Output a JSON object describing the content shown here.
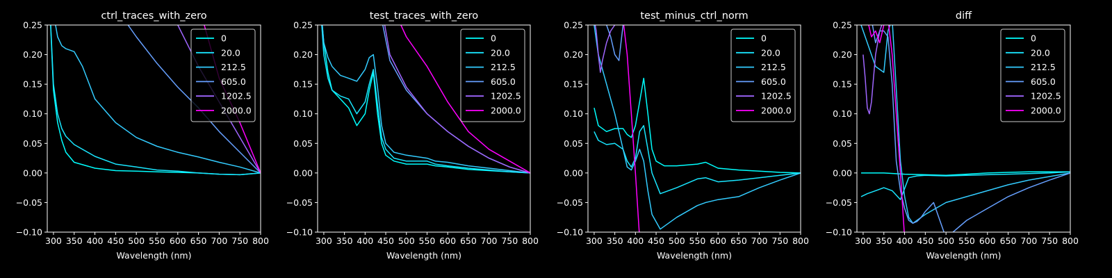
{
  "figure": {
    "background": "#000000",
    "axes_color": "#ffffff"
  },
  "chart_data": [
    {
      "type": "line",
      "title": "ctrl_traces_with_zero",
      "xlabel": "Wavelength (nm)",
      "ylabel": "",
      "xlim": [
        285,
        800
      ],
      "ylim": [
        -0.1,
        0.25
      ],
      "xticks": [
        "300",
        "350",
        "400",
        "450",
        "500",
        "550",
        "600",
        "650",
        "700",
        "750",
        "800"
      ],
      "yticks": [
        "−0.10",
        "−0.05",
        "0.00",
        "0.05",
        "0.10",
        "0.15",
        "0.20",
        "0.25"
      ],
      "legend_position": "top-right",
      "series": [
        {
          "name": "0",
          "color": "#00ffff",
          "x": [
            290,
            300,
            310,
            320,
            330,
            350,
            400,
            450,
            500,
            550,
            600,
            650,
            700,
            750,
            800
          ],
          "y": [
            0.3,
            0.14,
            0.085,
            0.055,
            0.035,
            0.018,
            0.008,
            0.004,
            0.003,
            0.002,
            0.001,
            0.0,
            -0.002,
            -0.003,
            0.0
          ]
        },
        {
          "name": "20.0",
          "color": "#19e6ff",
          "x": [
            290,
            300,
            310,
            320,
            330,
            350,
            400,
            450,
            500,
            550,
            600,
            650,
            700,
            750,
            800
          ],
          "y": [
            0.3,
            0.15,
            0.1,
            0.075,
            0.062,
            0.048,
            0.028,
            0.015,
            0.01,
            0.005,
            0.003,
            0.0,
            -0.002,
            -0.003,
            0.0
          ]
        },
        {
          "name": "212.5",
          "color": "#33ccff",
          "x": [
            300,
            310,
            320,
            330,
            350,
            370,
            400,
            450,
            500,
            550,
            600,
            650,
            700,
            750,
            800
          ],
          "y": [
            0.27,
            0.23,
            0.215,
            0.21,
            0.205,
            0.18,
            0.125,
            0.085,
            0.06,
            0.045,
            0.035,
            0.027,
            0.018,
            0.01,
            0.0
          ]
        },
        {
          "name": "605.0",
          "color": "#66a0ff",
          "x": [
            460,
            480,
            500,
            550,
            600,
            650,
            700,
            750,
            800
          ],
          "y": [
            0.27,
            0.25,
            0.23,
            0.185,
            0.145,
            0.11,
            0.07,
            0.035,
            0.0
          ]
        },
        {
          "name": "1202.5",
          "color": "#a066ff",
          "x": [
            600,
            650,
            700,
            750,
            800
          ],
          "y": [
            0.25,
            0.18,
            0.12,
            0.06,
            0.0
          ]
        },
        {
          "name": "2000.0",
          "color": "#ff00ff",
          "x": [
            660,
            700,
            750,
            800
          ],
          "y": [
            0.26,
            0.16,
            0.085,
            0.0
          ]
        }
      ]
    },
    {
      "type": "line",
      "title": "test_traces_with_zero",
      "xlabel": "Wavelength (nm)",
      "ylabel": "",
      "xlim": [
        285,
        800
      ],
      "ylim": [
        -0.1,
        0.25
      ],
      "xticks": [
        "300",
        "350",
        "400",
        "450",
        "500",
        "550",
        "600",
        "650",
        "700",
        "750",
        "800"
      ],
      "yticks": [
        "−0.10",
        "−0.05",
        "0.00",
        "0.05",
        "0.10",
        "0.15",
        "0.20",
        "0.25"
      ],
      "legend_position": "top-right",
      "series": [
        {
          "name": "0",
          "color": "#00ffff",
          "x": [
            290,
            300,
            310,
            320,
            340,
            360,
            380,
            400,
            410,
            420,
            430,
            440,
            450,
            470,
            500,
            550,
            570,
            600,
            650,
            700,
            750,
            800
          ],
          "y": [
            0.3,
            0.22,
            0.17,
            0.14,
            0.125,
            0.11,
            0.08,
            0.1,
            0.14,
            0.17,
            0.1,
            0.05,
            0.03,
            0.02,
            0.015,
            0.015,
            0.012,
            0.01,
            0.006,
            0.004,
            0.002,
            0.0
          ]
        },
        {
          "name": "20.0",
          "color": "#19e6ff",
          "x": [
            290,
            300,
            310,
            320,
            340,
            360,
            380,
            400,
            410,
            420,
            430,
            440,
            450,
            470,
            500,
            550,
            570,
            600,
            650,
            700,
            750,
            800
          ],
          "y": [
            0.3,
            0.2,
            0.16,
            0.14,
            0.13,
            0.125,
            0.1,
            0.12,
            0.15,
            0.175,
            0.115,
            0.06,
            0.04,
            0.025,
            0.02,
            0.02,
            0.015,
            0.012,
            0.008,
            0.005,
            0.002,
            0.0
          ]
        },
        {
          "name": "212.5",
          "color": "#33ccff",
          "x": [
            290,
            300,
            310,
            320,
            340,
            360,
            380,
            400,
            410,
            420,
            430,
            440,
            450,
            470,
            500,
            550,
            570,
            600,
            650,
            700,
            750,
            800
          ],
          "y": [
            0.3,
            0.22,
            0.195,
            0.18,
            0.165,
            0.16,
            0.155,
            0.175,
            0.195,
            0.2,
            0.145,
            0.08,
            0.05,
            0.035,
            0.03,
            0.025,
            0.02,
            0.018,
            0.012,
            0.008,
            0.004,
            0.0
          ]
        },
        {
          "name": "605.0",
          "color": "#66a0ff",
          "x": [
            440,
            460,
            500,
            550,
            600,
            650,
            700,
            750,
            800
          ],
          "y": [
            0.26,
            0.19,
            0.14,
            0.1,
            0.07,
            0.045,
            0.025,
            0.01,
            0.0
          ]
        },
        {
          "name": "1202.5",
          "color": "#a066ff",
          "x": [
            445,
            460,
            500,
            550,
            600,
            650,
            700,
            750,
            800
          ],
          "y": [
            0.26,
            0.2,
            0.145,
            0.1,
            0.07,
            0.045,
            0.025,
            0.01,
            0.0
          ]
        },
        {
          "name": "2000.0",
          "color": "#ff00ff",
          "x": [
            480,
            500,
            550,
            600,
            650,
            700,
            750,
            800
          ],
          "y": [
            0.26,
            0.23,
            0.18,
            0.12,
            0.07,
            0.04,
            0.02,
            0.0
          ]
        }
      ]
    },
    {
      "type": "line",
      "title": "test_minus_ctrl_norm",
      "xlabel": "Wavelength (nm)",
      "ylabel": "",
      "xlim": [
        285,
        800
      ],
      "ylim": [
        -0.1,
        0.25
      ],
      "xticks": [
        "300",
        "350",
        "400",
        "450",
        "500",
        "550",
        "600",
        "650",
        "700",
        "750",
        "800"
      ],
      "yticks": [
        "−0.10",
        "−0.05",
        "0.00",
        "0.05",
        "0.10",
        "0.15",
        "0.20",
        "0.25"
      ],
      "legend_position": "top-right",
      "series": [
        {
          "name": "0",
          "color": "#00ffff",
          "x": [
            300,
            310,
            330,
            350,
            370,
            380,
            390,
            400,
            410,
            420,
            430,
            440,
            450,
            470,
            500,
            550,
            570,
            600,
            650,
            700,
            750,
            800
          ],
          "y": [
            0.11,
            0.08,
            0.07,
            0.075,
            0.075,
            0.065,
            0.06,
            0.08,
            0.12,
            0.16,
            0.1,
            0.04,
            0.02,
            0.012,
            0.012,
            0.015,
            0.018,
            0.008,
            0.005,
            0.003,
            0.001,
            0.0
          ]
        },
        {
          "name": "20.0",
          "color": "#19e6ff",
          "x": [
            300,
            310,
            330,
            350,
            370,
            380,
            390,
            400,
            410,
            420,
            430,
            440,
            460,
            500,
            550,
            570,
            600,
            650,
            700,
            750,
            800
          ],
          "y": [
            0.07,
            0.055,
            0.048,
            0.05,
            0.04,
            0.02,
            0.01,
            0.025,
            0.07,
            0.08,
            0.04,
            0.0,
            -0.035,
            -0.025,
            -0.01,
            -0.008,
            -0.015,
            -0.012,
            -0.008,
            -0.004,
            0.0
          ]
        },
        {
          "name": "212.5",
          "color": "#33ccff",
          "x": [
            300,
            310,
            330,
            350,
            370,
            380,
            390,
            400,
            410,
            420,
            430,
            440,
            460,
            500,
            550,
            570,
            600,
            650,
            700,
            750,
            800
          ],
          "y": [
            0.25,
            0.2,
            0.15,
            0.1,
            0.04,
            0.01,
            0.005,
            0.02,
            0.04,
            0.02,
            -0.03,
            -0.07,
            -0.095,
            -0.075,
            -0.055,
            -0.05,
            -0.045,
            -0.04,
            -0.025,
            -0.012,
            0.0
          ]
        },
        {
          "name": "605.0",
          "color": "#66a0ff",
          "x": [
            330,
            340,
            350,
            360,
            365,
            370,
            380,
            390,
            400
          ],
          "y": [
            0.25,
            0.23,
            0.2,
            0.19,
            0.22,
            0.25,
            0.26,
            0.26,
            0.26
          ]
        },
        {
          "name": "1202.5",
          "color": "#a066ff",
          "x": [
            300,
            305,
            310,
            315,
            320,
            330,
            340,
            350
          ],
          "y": [
            0.26,
            0.24,
            0.2,
            0.17,
            0.19,
            0.22,
            0.24,
            0.25
          ]
        },
        {
          "name": "2000.0",
          "color": "#ff00ff",
          "x": [
            370,
            380,
            390,
            400,
            410
          ],
          "y": [
            0.26,
            0.2,
            0.1,
            0.0,
            -0.11
          ]
        }
      ]
    },
    {
      "type": "line",
      "title": "diff",
      "xlabel": "Wavelength (nm)",
      "ylabel": "",
      "xlim": [
        285,
        800
      ],
      "ylim": [
        -0.1,
        0.25
      ],
      "xticks": [
        "300",
        "350",
        "400",
        "450",
        "500",
        "550",
        "600",
        "650",
        "700",
        "750",
        "800"
      ],
      "yticks": [
        "−0.10",
        "−0.05",
        "0.00",
        "0.05",
        "0.10",
        "0.15",
        "0.20",
        "0.25"
      ],
      "legend_position": "top-right",
      "series": [
        {
          "name": "0",
          "color": "#00ffff",
          "x": [
            295,
            350,
            400,
            450,
            500,
            550,
            600,
            650,
            700,
            750,
            800
          ],
          "y": [
            0.0,
            0.0,
            -0.002,
            -0.003,
            -0.004,
            -0.002,
            0.0,
            0.001,
            0.002,
            0.002,
            0.002
          ]
        },
        {
          "name": "20.0",
          "color": "#19e6ff",
          "x": [
            295,
            310,
            330,
            350,
            370,
            390,
            410,
            430,
            450,
            500,
            550,
            600,
            650,
            700,
            750,
            800
          ],
          "y": [
            -0.04,
            -0.035,
            -0.03,
            -0.025,
            -0.03,
            -0.045,
            -0.008,
            -0.005,
            -0.004,
            -0.005,
            -0.004,
            -0.003,
            -0.002,
            -0.001,
            0.0,
            0.002
          ]
        },
        {
          "name": "212.5",
          "color": "#33ccff",
          "x": [
            295,
            310,
            330,
            350,
            360,
            370,
            390,
            400,
            410,
            420,
            450,
            500,
            550,
            600,
            650,
            700,
            750,
            800
          ],
          "y": [
            0.25,
            0.22,
            0.18,
            0.17,
            0.24,
            0.26,
            0.02,
            -0.04,
            -0.075,
            -0.085,
            -0.07,
            -0.05,
            -0.04,
            -0.03,
            -0.02,
            -0.012,
            -0.006,
            0.0
          ]
        },
        {
          "name": "605.0",
          "color": "#66a0ff",
          "x": [
            320,
            330,
            340,
            350,
            360,
            370,
            380,
            390,
            400,
            410,
            420,
            430,
            440,
            450,
            470,
            500,
            550,
            600,
            650,
            700,
            750,
            800
          ],
          "y": [
            0.26,
            0.22,
            0.24,
            0.24,
            0.23,
            0.15,
            0.02,
            -0.03,
            -0.06,
            -0.08,
            -0.085,
            -0.082,
            -0.075,
            -0.065,
            -0.05,
            -0.11,
            -0.08,
            -0.06,
            -0.04,
            -0.025,
            -0.012,
            0.0
          ]
        },
        {
          "name": "1202.5",
          "color": "#a066ff",
          "x": [
            300,
            305,
            310,
            315,
            320,
            325,
            330,
            340,
            350
          ],
          "y": [
            0.2,
            0.16,
            0.11,
            0.1,
            0.12,
            0.16,
            0.2,
            0.24,
            0.26
          ]
        },
        {
          "name": "2000.0",
          "color": "#ff00ff",
          "x": [
            310,
            320,
            330,
            340,
            350,
            360,
            370,
            380,
            390,
            400
          ],
          "y": [
            0.26,
            0.23,
            0.24,
            0.22,
            0.25,
            0.26,
            0.2,
            0.1,
            0.0,
            -0.11
          ]
        }
      ]
    }
  ]
}
